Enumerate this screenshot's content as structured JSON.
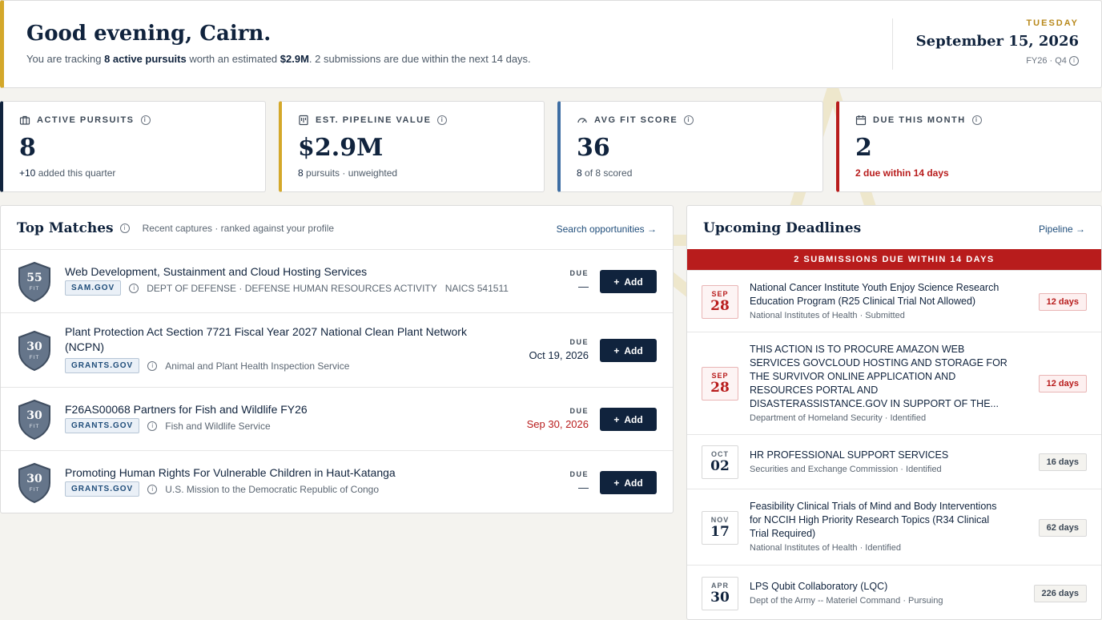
{
  "header": {
    "greeting": "Good evening, Cairn.",
    "sub_prefix": "You are tracking ",
    "sub_pursuits": "8 active pursuits",
    "sub_mid": " worth an estimated ",
    "sub_value": "$2.9M",
    "sub_suffix": ". 2 submissions are due within the next 14 days.",
    "weekday": "TUESDAY",
    "date": "September 15, 2026",
    "fiscal": "FY26 · Q4"
  },
  "stats": [
    {
      "label": "ACTIVE PURSUITS",
      "value": "8",
      "sub_strong": "+10",
      "sub": " added this quarter",
      "accent": "#10233d",
      "icon": "briefcase-icon"
    },
    {
      "label": "EST. PIPELINE VALUE",
      "value": "$2.9M",
      "sub_strong": "8",
      "sub": " pursuits · unweighted",
      "accent": "#d4a82a",
      "icon": "ledger-icon"
    },
    {
      "label": "AVG FIT SCORE",
      "value": "36",
      "sub_strong": "8",
      "sub": " of 8 scored",
      "accent": "#3e6ea3",
      "icon": "gauge-icon"
    },
    {
      "label": "DUE THIS MONTH",
      "value": "2",
      "sub_strong": "",
      "sub": "2 due within 14 days",
      "accent": "#b81c1c",
      "icon": "calendar-icon"
    }
  ],
  "matches": {
    "title": "Top Matches",
    "hint": "Recent captures · ranked against your profile",
    "link": "Search opportunities →",
    "due_label": "DUE",
    "add_label": "Add",
    "fit_label": "FIT",
    "items": [
      {
        "score": "55",
        "title_1": "Web Development, Sustainment and Cloud Hosting Services",
        "title_2": "",
        "source": "SAM.GOV",
        "agency": "DEPT OF DEFENSE · DEFENSE HUMAN RESOURCES ACTIVITY",
        "naics": "NAICS 541511",
        "due": "—"
      },
      {
        "score": "30",
        "title_1": "Plant Protection Act Section 7721 Fiscal Year 2027 National Clean Plant Network",
        "title_2": "(NCPN)",
        "source": "GRANTS.GOV",
        "agency": "Animal and Plant Health Inspection Service",
        "naics": "",
        "due": "Oct 19, 2026"
      },
      {
        "score": "30",
        "title_1": "F26AS00068 Partners for Fish and Wildlife FY26",
        "title_2": "",
        "source": "GRANTS.GOV",
        "agency": "Fish and Wildlife Service",
        "naics": "",
        "due": "Sep 30, 2026"
      },
      {
        "score": "30",
        "title_1": "Promoting Human Rights For Vulnerable Children in Haut-Katanga",
        "title_2": "",
        "source": "GRANTS.GOV",
        "agency": "U.S. Mission to the Democratic Republic of Congo",
        "naics": "",
        "due": "—"
      }
    ]
  },
  "deadlines": {
    "title": "Upcoming Deadlines",
    "link": "Pipeline →",
    "banner": "2 SUBMISSIONS DUE WITHIN 14 DAYS",
    "items": [
      {
        "month": "SEP",
        "day": "28",
        "lines": [
          "National Cancer Institute Youth Enjoy Science Research",
          "Education Program (R25 Clinical Trial Not Allowed)"
        ],
        "meta": "National Institutes of Health · Submitted",
        "days": "12 days"
      },
      {
        "month": "SEP",
        "day": "28",
        "lines": [
          "THIS ACTION IS TO PROCURE AMAZON WEB",
          "SERVICES GOVCLOUD HOSTING AND STORAGE FOR",
          "THE SURVIVOR ONLINE APPLICATION AND",
          "RESOURCES PORTAL AND",
          "DISASTERASSISTANCE.GOV IN SUPPORT OF THE..."
        ],
        "meta": "Department of Homeland Security · Identified",
        "days": "12 days"
      },
      {
        "month": "OCT",
        "day": "02",
        "lines": [
          "HR PROFESSIONAL SUPPORT SERVICES"
        ],
        "meta": "Securities and Exchange Commission · Identified",
        "days": "16 days"
      },
      {
        "month": "NOV",
        "day": "17",
        "lines": [
          "Feasibility Clinical Trials of Mind and Body Interventions",
          "for NCCIH High Priority Research Topics (R34 Clinical",
          "Trial Required)"
        ],
        "meta": "National Institutes of Health · Identified",
        "days": "62 days"
      },
      {
        "month": "APR",
        "day": "30",
        "lines": [
          "LPS Qubit Collaboratory (LQC)"
        ],
        "meta": "Dept of the Army -- Materiel Command · Pursuing",
        "days": "226 days"
      }
    ]
  }
}
